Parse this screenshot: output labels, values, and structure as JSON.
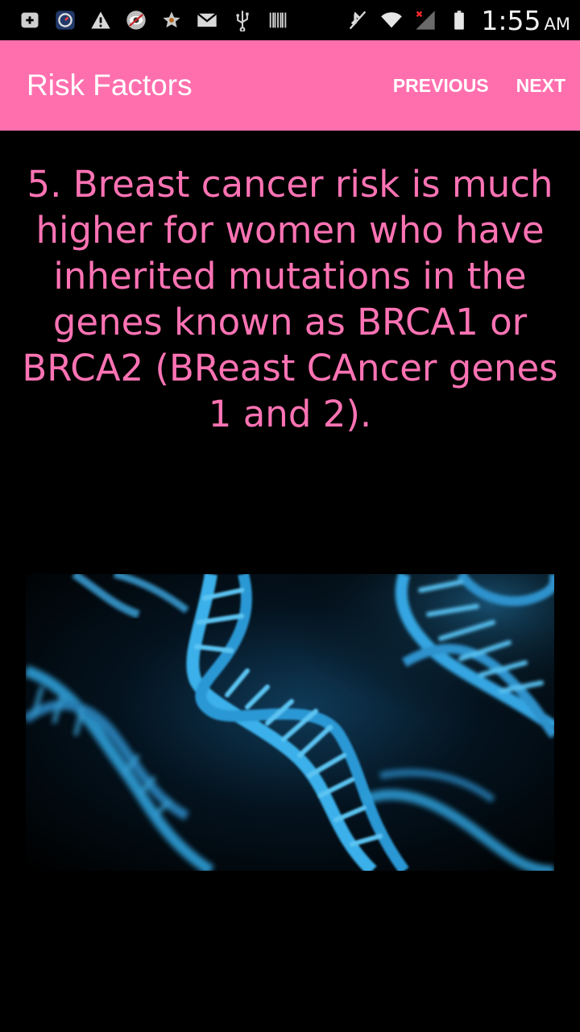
{
  "status_bar": {
    "time": "1:55",
    "ampm": "AM",
    "icons_left": [
      "add-box-icon",
      "dial-icon",
      "warning-icon",
      "eye-app-icon",
      "star-icon",
      "gmail-icon",
      "usb-icon",
      "barcode-icon"
    ],
    "icons_right": [
      "mute-icon",
      "wifi-icon",
      "signal-icon",
      "battery-icon"
    ]
  },
  "app_bar": {
    "title": "Risk Factors",
    "previous_label": "PREVIOUS",
    "next_label": "NEXT",
    "background_color": "#ff6fae"
  },
  "content": {
    "fact_text": "5. Breast cancer risk is much higher for women who have inherited mutations in the genes known as BRCA1 or BRCA2 (BReast CAncer genes 1 and 2).",
    "text_color": "#ff73b4",
    "image_description_icon": "dna-double-helix-image"
  }
}
